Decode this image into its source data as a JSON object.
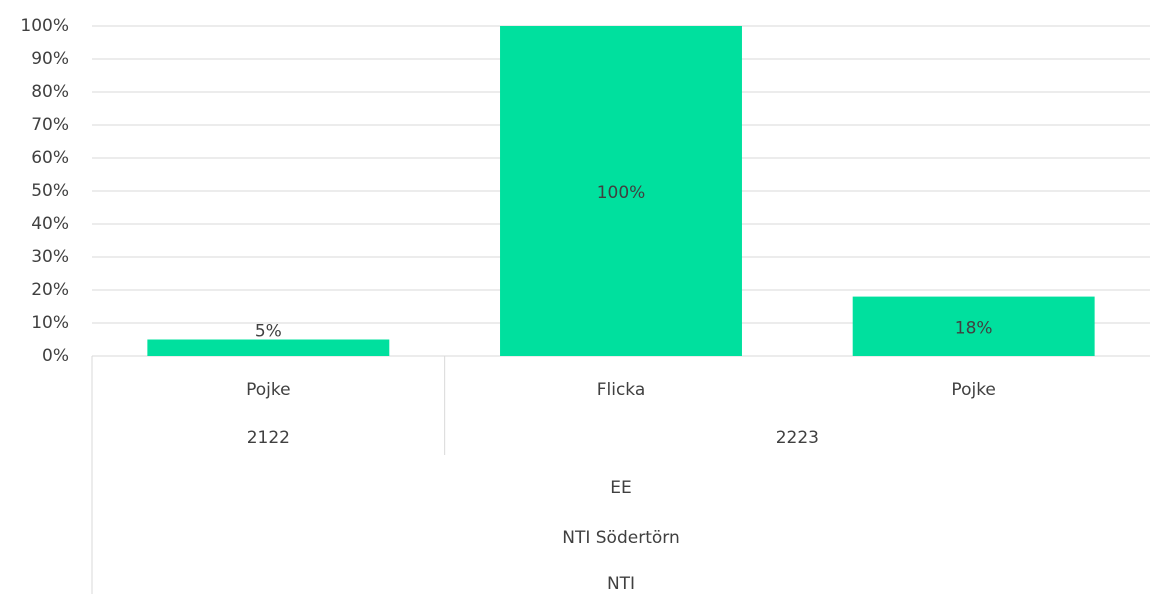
{
  "chart_data": {
    "type": "bar",
    "color": "#00e09e",
    "groups": [
      {
        "name": "2122",
        "categories": [
          "Pojke"
        ],
        "values": [
          5
        ],
        "value_labels": [
          "5%"
        ]
      },
      {
        "name": "2223",
        "categories": [
          "Flicka",
          "Pojke"
        ],
        "values": [
          100,
          18
        ],
        "value_labels": [
          "100%",
          "18%"
        ]
      }
    ],
    "outer_levels": [
      "EE",
      "NTI Södertörn",
      "NTI"
    ],
    "ylim": [
      0,
      100
    ],
    "yticks": [
      {
        "value": 0,
        "label": "0%"
      },
      {
        "value": 10,
        "label": "10%"
      },
      {
        "value": 20,
        "label": "20%"
      },
      {
        "value": 30,
        "label": "30%"
      },
      {
        "value": 40,
        "label": "40%"
      },
      {
        "value": 50,
        "label": "50%"
      },
      {
        "value": 60,
        "label": "60%"
      },
      {
        "value": 70,
        "label": "70%"
      },
      {
        "value": 80,
        "label": "80%"
      },
      {
        "value": 90,
        "label": "90%"
      },
      {
        "value": 100,
        "label": "100%"
      }
    ],
    "grid": true
  }
}
